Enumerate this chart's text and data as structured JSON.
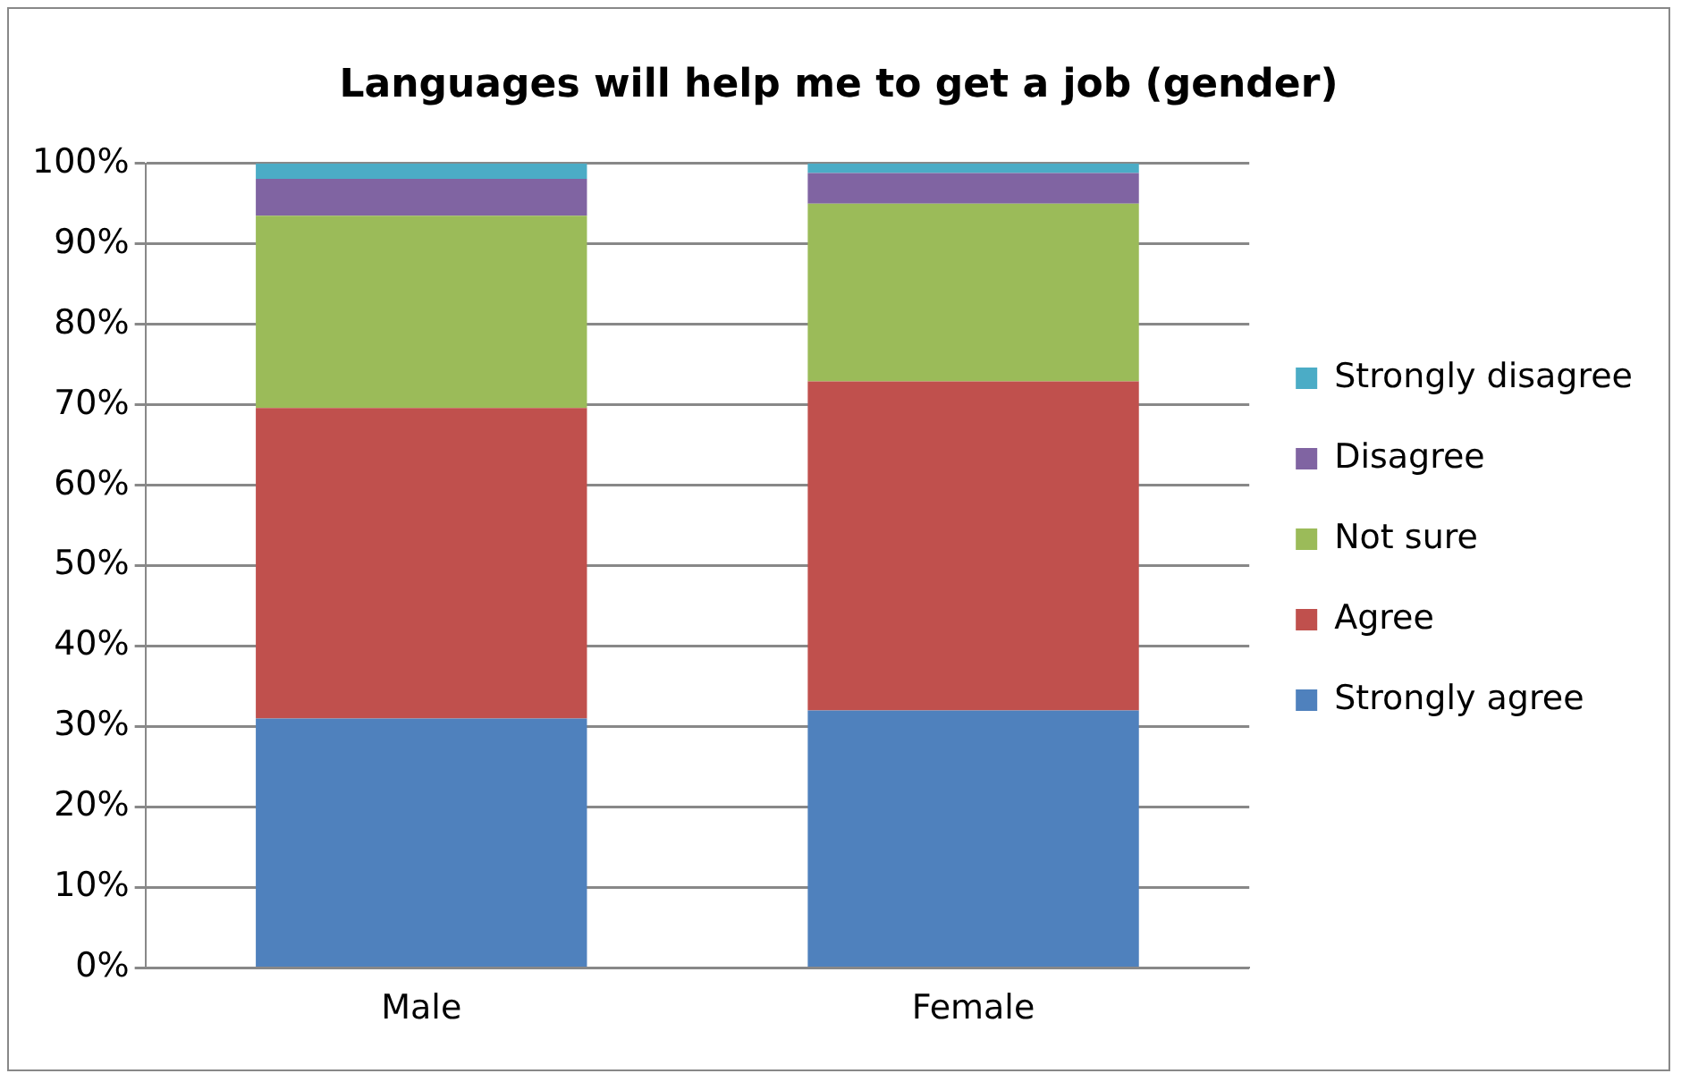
{
  "chart_data": {
    "type": "bar",
    "title": "Languages will help me to get a job (gender)",
    "categories": [
      "Male",
      "Female"
    ],
    "stacked": true,
    "series": [
      {
        "name": "Strongly agree",
        "color": "#4f81bd",
        "values": [
          31.0,
          32.0
        ]
      },
      {
        "name": "Agree",
        "color": "#c0504d",
        "values": [
          38.6,
          40.9
        ]
      },
      {
        "name": "Not sure",
        "color": "#9bbb59",
        "values": [
          23.9,
          22.1
        ]
      },
      {
        "name": "Disagree",
        "color": "#8064a2",
        "values": [
          4.6,
          3.8
        ]
      },
      {
        "name": "Strongly disagree",
        "color": "#4bacc6",
        "values": [
          1.9,
          1.2
        ]
      }
    ],
    "ylim": [
      0,
      100
    ],
    "yticks": [
      {
        "value": 0,
        "label": "0%"
      },
      {
        "value": 10,
        "label": "10%"
      },
      {
        "value": 20,
        "label": "20%"
      },
      {
        "value": 30,
        "label": "30%"
      },
      {
        "value": 40,
        "label": "40%"
      },
      {
        "value": 50,
        "label": "50%"
      },
      {
        "value": 60,
        "label": "60%"
      },
      {
        "value": 70,
        "label": "70%"
      },
      {
        "value": 80,
        "label": "80%"
      },
      {
        "value": 90,
        "label": "90%"
      },
      {
        "value": 100,
        "label": "100%"
      }
    ],
    "grid": "y",
    "legend": "right"
  }
}
